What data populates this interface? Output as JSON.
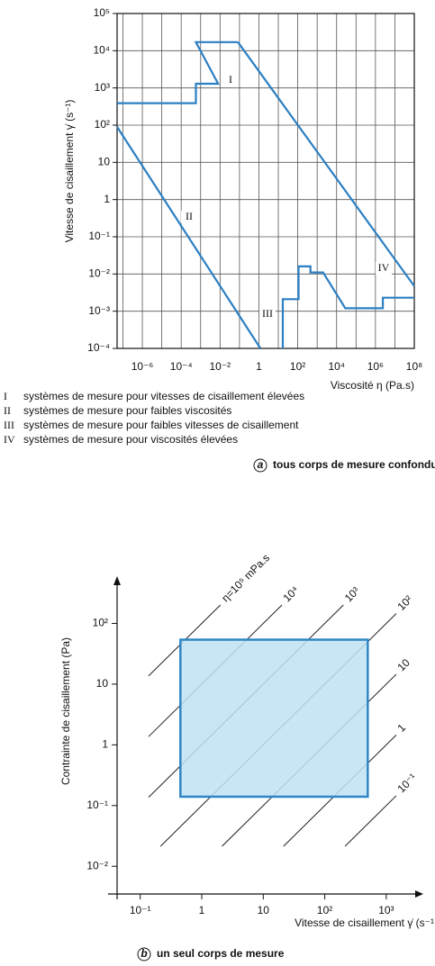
{
  "chart_data": [
    {
      "type": "line",
      "xlabel": "Viscosité η (Pa.s)",
      "ylabel": "Vitesse de cisaillement γ̇ (s⁻¹)",
      "log_x": true,
      "log_y": true,
      "grid": true,
      "xlim": [
        5e-08,
        100000000
      ],
      "ylim": [
        0.0001,
        100000
      ],
      "xticks": [
        {
          "value": 1e-06,
          "label": "10⁻⁶"
        },
        {
          "value": 0.0001,
          "label": "10⁻⁴"
        },
        {
          "value": 0.01,
          "label": "10⁻²"
        },
        1,
        {
          "value": 100,
          "label": "10²"
        },
        {
          "value": 10000,
          "label": "10⁴"
        },
        {
          "value": 1000000,
          "label": "10⁶"
        },
        {
          "value": 100000000,
          "label": "10⁸"
        }
      ],
      "yticks": [
        {
          "value": 0.0001,
          "label": "10⁻⁴"
        },
        {
          "value": 0.001,
          "label": "10⁻³"
        },
        {
          "value": 0.01,
          "label": "10⁻²"
        },
        {
          "value": 0.1,
          "label": "10⁻¹"
        },
        1,
        10,
        {
          "value": 100,
          "label": "10²"
        },
        {
          "value": 1000,
          "label": "10³"
        },
        {
          "value": 10000,
          "label": "10⁴"
        },
        {
          "value": 100000,
          "label": "10⁵"
        }
      ],
      "series": [
        {
          "name": "I",
          "description": "systèmes de mesure pour vitesses de cisaillement élevées",
          "color": "#2b7fc3",
          "x": [
            5e-08,
            0.00057,
            0.00057,
            0.008,
            0.00057,
            0.083
          ],
          "values": [
            390,
            390,
            1300,
            1300,
            17000,
            17000
          ]
        },
        {
          "name": "II",
          "description": "systèmes de mesure pour faibles viscosités",
          "color": "#2b7fc3",
          "x": [
            5e-08,
            1.2
          ],
          "values": [
            90,
            0.0001
          ]
        },
        {
          "name": "III",
          "description": "systèmes de mesure pour faibles vitesses de cisaillement",
          "color": "#2b7fc3",
          "x": [
            17,
            17,
            110,
            110,
            450,
            450,
            2000,
            28000,
            2400000,
            2400000,
            100000000
          ],
          "values": [
            0.0001,
            0.0021,
            0.0021,
            0.016,
            0.016,
            0.011,
            0.011,
            0.0012,
            0.0012,
            0.0023,
            0.0023
          ]
        },
        {
          "name": "IV",
          "description": "systèmes de mesure pour viscosités élevées",
          "color": "#2b7fc3",
          "x": [
            0.083,
            100000000
          ],
          "values": [
            17000,
            0.0047
          ]
        }
      ],
      "caption_letter": "a",
      "caption": "tous corps de mesure confondus"
    },
    {
      "type": "range",
      "xlabel": "Vitesse de cisaillement γ̇ (s⁻¹",
      "ylabel": "Contrainte de cisaillement (Pa)",
      "log_x": true,
      "log_y": true,
      "xlim": [
        0.03,
        4000
      ],
      "ylim": [
        0.0035,
        600
      ],
      "xticks": [
        {
          "value": 0.1,
          "label": "10⁻¹"
        },
        1,
        10,
        {
          "value": 100,
          "label": "10²"
        },
        {
          "value": 1000,
          "label": "10³"
        }
      ],
      "yticks": [
        {
          "value": 0.01,
          "label": "10⁻²"
        },
        {
          "value": 0.1,
          "label": "10⁻¹"
        },
        1,
        10,
        {
          "value": 100,
          "label": "10²"
        }
      ],
      "range": {
        "x": [
          0.45,
          500
        ],
        "y": [
          0.14,
          54
        ]
      },
      "color": "#bfe2f3",
      "edge_color": "#2f86c6",
      "viscosity_lines": {
        "values": [
          100000,
          10000,
          1000,
          100,
          10,
          1,
          0.1
        ],
        "value_labels": [
          "η=10⁵ mPa.s",
          "10⁴",
          "10³",
          "10²",
          "10",
          "1",
          "10⁻¹"
        ]
      },
      "caption_letter": "b",
      "caption": "un seul corps de mesure"
    }
  ]
}
